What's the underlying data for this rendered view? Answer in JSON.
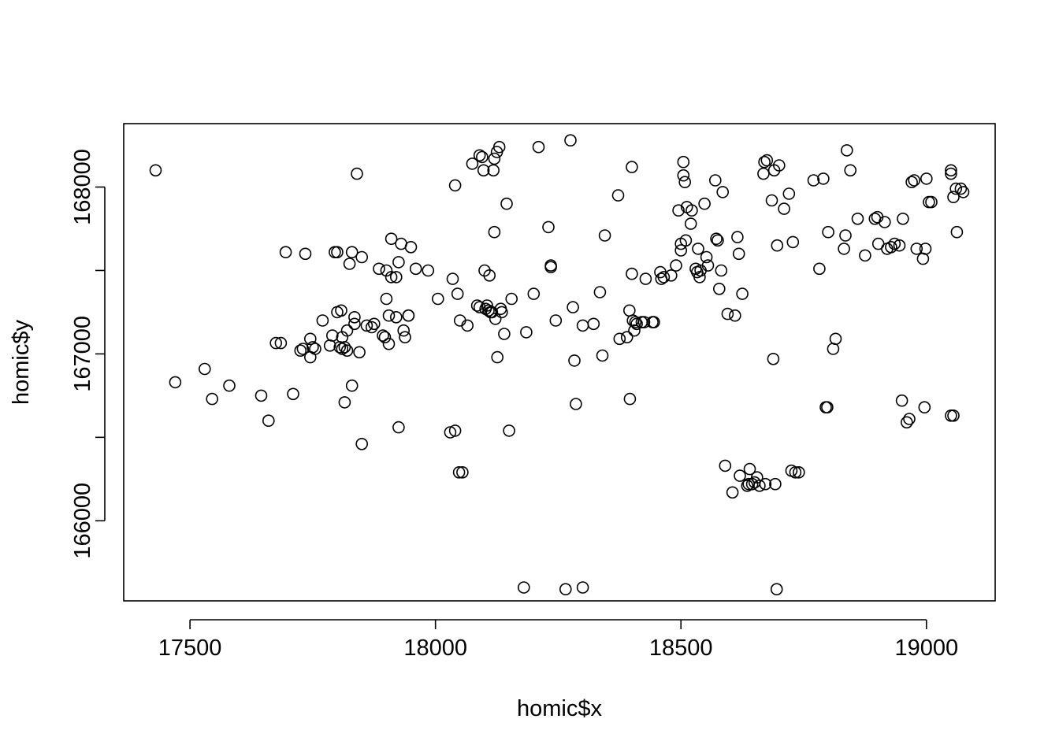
{
  "chart_data": {
    "type": "scatter",
    "title": "",
    "xlabel": "homic$x",
    "ylabel": "homic$y",
    "xlim": [
      17365,
      19140
    ],
    "ylim": [
      165520,
      168380
    ],
    "x_ticks": [
      17500,
      18000,
      18500,
      19000
    ],
    "y_ticks": [
      166000,
      166500,
      167000,
      167500,
      168000
    ],
    "x_tick_labels": [
      "17500",
      "18000",
      "18500",
      "19000"
    ],
    "y_tick_labels": [
      "166000",
      "",
      "167000",
      "",
      "168000"
    ],
    "grid": false,
    "legend": "none",
    "marker": "open-circle",
    "points": [
      [
        17430,
        168100
      ],
      [
        17470,
        166830
      ],
      [
        17530,
        166910
      ],
      [
        17545,
        166730
      ],
      [
        17580,
        166810
      ],
      [
        17645,
        166750
      ],
      [
        17660,
        166600
      ],
      [
        17675,
        167065
      ],
      [
        17685,
        167065
      ],
      [
        17695,
        167610
      ],
      [
        17710,
        166760
      ],
      [
        17725,
        167020
      ],
      [
        17730,
        167030
      ],
      [
        17735,
        167600
      ],
      [
        17745,
        167090
      ],
      [
        17745,
        166980
      ],
      [
        17750,
        167040
      ],
      [
        17755,
        167030
      ],
      [
        17770,
        167200
      ],
      [
        17785,
        167050
      ],
      [
        17790,
        167110
      ],
      [
        17795,
        167610
      ],
      [
        17800,
        167250
      ],
      [
        17800,
        167610
      ],
      [
        17805,
        167040
      ],
      [
        17808,
        167260
      ],
      [
        17810,
        167100
      ],
      [
        17810,
        167030
      ],
      [
        17815,
        166710
      ],
      [
        17815,
        167040
      ],
      [
        17820,
        167020
      ],
      [
        17820,
        167140
      ],
      [
        17825,
        167540
      ],
      [
        17830,
        167610
      ],
      [
        17830,
        166810
      ],
      [
        17835,
        167220
      ],
      [
        17835,
        167180
      ],
      [
        17840,
        168080
      ],
      [
        17845,
        167010
      ],
      [
        17850,
        167580
      ],
      [
        17850,
        166460
      ],
      [
        17860,
        167170
      ],
      [
        17870,
        167160
      ],
      [
        17875,
        167180
      ],
      [
        17885,
        167510
      ],
      [
        17893,
        167110
      ],
      [
        17897,
        167100
      ],
      [
        17900,
        167330
      ],
      [
        17900,
        167500
      ],
      [
        17905,
        167060
      ],
      [
        17905,
        167230
      ],
      [
        17910,
        167690
      ],
      [
        17910,
        167460
      ],
      [
        17920,
        167220
      ],
      [
        17920,
        167460
      ],
      [
        17925,
        167550
      ],
      [
        17925,
        166560
      ],
      [
        17930,
        167660
      ],
      [
        17935,
        167140
      ],
      [
        17938,
        167100
      ],
      [
        17945,
        167230
      ],
      [
        17945,
        167230
      ],
      [
        17950,
        167640
      ],
      [
        17960,
        167510
      ],
      [
        17985,
        167500
      ],
      [
        18005,
        167330
      ],
      [
        18030,
        166530
      ],
      [
        18035,
        167450
      ],
      [
        18040,
        166540
      ],
      [
        18040,
        168010
      ],
      [
        18045,
        167360
      ],
      [
        18048,
        166290
      ],
      [
        18050,
        167200
      ],
      [
        18055,
        166290
      ],
      [
        18065,
        167170
      ],
      [
        18075,
        168140
      ],
      [
        18085,
        167290
      ],
      [
        18090,
        167280
      ],
      [
        18090,
        168190
      ],
      [
        18095,
        168180
      ],
      [
        18098,
        168100
      ],
      [
        18100,
        167500
      ],
      [
        18102,
        167270
      ],
      [
        18105,
        167290
      ],
      [
        18108,
        167260
      ],
      [
        18110,
        167470
      ],
      [
        18112,
        167250
      ],
      [
        18115,
        167250
      ],
      [
        18118,
        168100
      ],
      [
        18120,
        168170
      ],
      [
        18120,
        167730
      ],
      [
        18122,
        167210
      ],
      [
        18125,
        168210
      ],
      [
        18126,
        166980
      ],
      [
        18130,
        168240
      ],
      [
        18133,
        167270
      ],
      [
        18135,
        167250
      ],
      [
        18140,
        167120
      ],
      [
        18145,
        167900
      ],
      [
        18150,
        166540
      ],
      [
        18155,
        167330
      ],
      [
        18180,
        165600
      ],
      [
        18185,
        167130
      ],
      [
        18200,
        167360
      ],
      [
        18210,
        168240
      ],
      [
        18230,
        167760
      ],
      [
        18235,
        167520
      ],
      [
        18235,
        167530
      ],
      [
        18245,
        167200
      ],
      [
        18265,
        165590
      ],
      [
        18275,
        168280
      ],
      [
        18280,
        167280
      ],
      [
        18283,
        166960
      ],
      [
        18286,
        166700
      ],
      [
        18300,
        165600
      ],
      [
        18300,
        167170
      ],
      [
        18322,
        167180
      ],
      [
        18335,
        167370
      ],
      [
        18340,
        166990
      ],
      [
        18345,
        167710
      ],
      [
        18372,
        167950
      ],
      [
        18375,
        167090
      ],
      [
        18390,
        167100
      ],
      [
        18395,
        167260
      ],
      [
        18396,
        166730
      ],
      [
        18400,
        168120
      ],
      [
        18400,
        167480
      ],
      [
        18402,
        167200
      ],
      [
        18405,
        167140
      ],
      [
        18407,
        167190
      ],
      [
        18410,
        167180
      ],
      [
        18420,
        167190
      ],
      [
        18425,
        167190
      ],
      [
        18428,
        167450
      ],
      [
        18442,
        167190
      ],
      [
        18445,
        167190
      ],
      [
        18458,
        167490
      ],
      [
        18460,
        167450
      ],
      [
        18465,
        167460
      ],
      [
        18480,
        167470
      ],
      [
        18490,
        167530
      ],
      [
        18495,
        167860
      ],
      [
        18500,
        167660
      ],
      [
        18500,
        167620
      ],
      [
        18505,
        168150
      ],
      [
        18505,
        168070
      ],
      [
        18508,
        168030
      ],
      [
        18510,
        167680
      ],
      [
        18512,
        167880
      ],
      [
        18520,
        167780
      ],
      [
        18522,
        167860
      ],
      [
        18530,
        167510
      ],
      [
        18533,
        167490
      ],
      [
        18535,
        167630
      ],
      [
        18538,
        167460
      ],
      [
        18540,
        167500
      ],
      [
        18548,
        167900
      ],
      [
        18552,
        167580
      ],
      [
        18555,
        167530
      ],
      [
        18570,
        168040
      ],
      [
        18572,
        167690
      ],
      [
        18575,
        167680
      ],
      [
        18578,
        167390
      ],
      [
        18582,
        167500
      ],
      [
        18585,
        167970
      ],
      [
        18590,
        166330
      ],
      [
        18595,
        167240
      ],
      [
        18605,
        166170
      ],
      [
        18610,
        167230
      ],
      [
        18615,
        167700
      ],
      [
        18618,
        167600
      ],
      [
        18620,
        166270
      ],
      [
        18625,
        167360
      ],
      [
        18635,
        166210
      ],
      [
        18638,
        166220
      ],
      [
        18640,
        166310
      ],
      [
        18645,
        166220
      ],
      [
        18650,
        166230
      ],
      [
        18655,
        166260
      ],
      [
        18660,
        166210
      ],
      [
        18668,
        168080
      ],
      [
        18670,
        168150
      ],
      [
        18672,
        166220
      ],
      [
        18675,
        168160
      ],
      [
        18685,
        167920
      ],
      [
        18688,
        166970
      ],
      [
        18690,
        168100
      ],
      [
        18692,
        166220
      ],
      [
        18695,
        165590
      ],
      [
        18696,
        167650
      ],
      [
        18700,
        168130
      ],
      [
        18710,
        167870
      ],
      [
        18720,
        167960
      ],
      [
        18725,
        166300
      ],
      [
        18728,
        167670
      ],
      [
        18733,
        166290
      ],
      [
        18740,
        166290
      ],
      [
        18770,
        168040
      ],
      [
        18782,
        167510
      ],
      [
        18790,
        168050
      ],
      [
        18795,
        166680
      ],
      [
        18798,
        166680
      ],
      [
        18800,
        167730
      ],
      [
        18810,
        167030
      ],
      [
        18815,
        167090
      ],
      [
        18832,
        167630
      ],
      [
        18835,
        167710
      ],
      [
        18838,
        168220
      ],
      [
        18845,
        168100
      ],
      [
        18860,
        167810
      ],
      [
        18875,
        167590
      ],
      [
        18895,
        167810
      ],
      [
        18900,
        167820
      ],
      [
        18902,
        167660
      ],
      [
        18915,
        167790
      ],
      [
        18920,
        167630
      ],
      [
        18928,
        167640
      ],
      [
        18935,
        167660
      ],
      [
        18945,
        167650
      ],
      [
        18950,
        166720
      ],
      [
        18952,
        167810
      ],
      [
        18960,
        166590
      ],
      [
        18965,
        166610
      ],
      [
        18970,
        168030
      ],
      [
        18975,
        168040
      ],
      [
        18980,
        167630
      ],
      [
        18993,
        167570
      ],
      [
        18996,
        166680
      ],
      [
        18998,
        167630
      ],
      [
        19000,
        168050
      ],
      [
        19005,
        167910
      ],
      [
        19010,
        167910
      ],
      [
        19050,
        168100
      ],
      [
        19050,
        168080
      ],
      [
        19050,
        166630
      ],
      [
        19055,
        167940
      ],
      [
        19060,
        167990
      ],
      [
        19062,
        167730
      ],
      [
        19070,
        167990
      ],
      [
        19075,
        167970
      ],
      [
        19055,
        166630
      ]
    ]
  }
}
